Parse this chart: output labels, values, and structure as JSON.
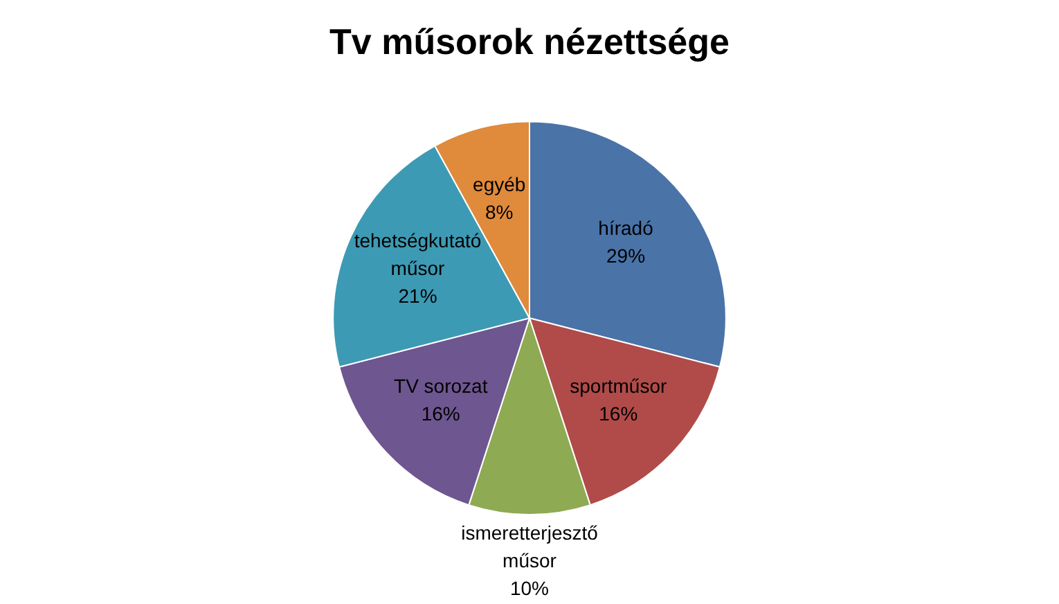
{
  "chart_data": {
    "type": "pie",
    "title": "Tv műsorok nézettsége",
    "categories": [
      "híradó",
      "sportműsor",
      "ismeretterjesztő műsor",
      "TV sorozat",
      "tehetségkutató műsor",
      "egyéb"
    ],
    "values": [
      29,
      16,
      10,
      16,
      21,
      8
    ],
    "value_labels": [
      "29%",
      "16%",
      "10%",
      "16%",
      "21%",
      "8%"
    ],
    "colors": [
      "#4a73a8",
      "#b04b49",
      "#8eaa52",
      "#6e5690",
      "#3d9ab4",
      "#e08a3c"
    ],
    "legend": false
  }
}
